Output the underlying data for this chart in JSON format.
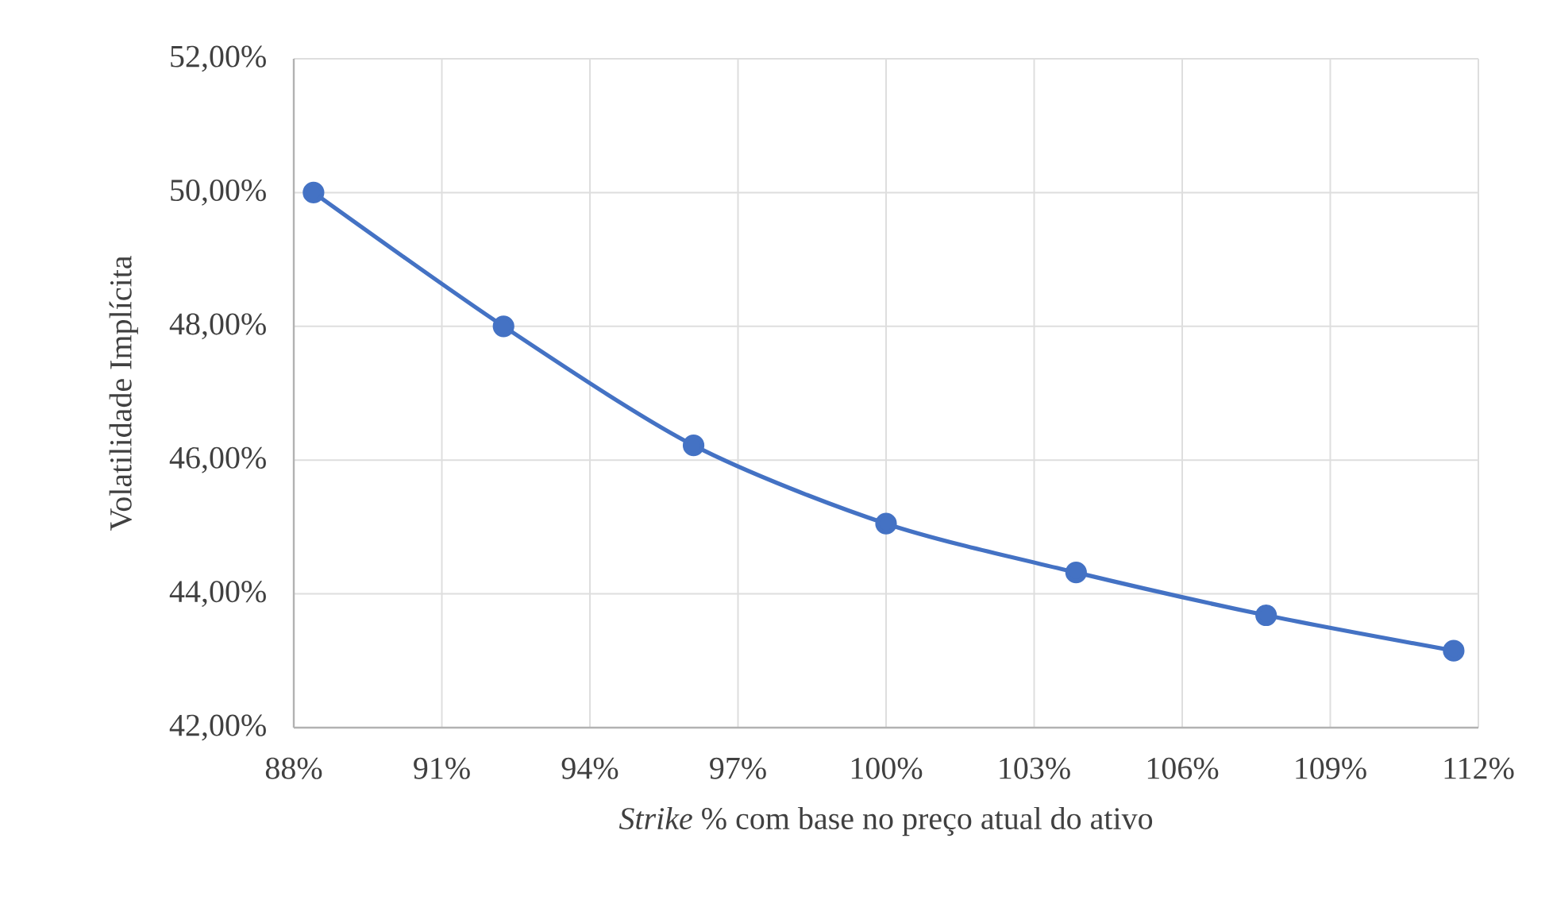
{
  "chart_data": {
    "type": "line",
    "xlabel": "*Strike* % com base no preço atual do ativo",
    "ylabel": "Volatilidade Implícita",
    "x": [
      88.4,
      92.25,
      96.1,
      100,
      103.85,
      107.7,
      111.5
    ],
    "series": [
      {
        "color": "#4472c4",
        "values": [
          50.0,
          48.0,
          46.22,
          45.05,
          44.32,
          43.68,
          43.15
        ]
      }
    ],
    "xlim": [
      88,
      112
    ],
    "xticks": [
      {
        "value": 88,
        "label": "88%"
      },
      {
        "value": 91,
        "label": "91%"
      },
      {
        "value": 94,
        "label": "94%"
      },
      {
        "value": 97,
        "label": "97%"
      },
      {
        "value": 100,
        "label": "100%"
      },
      {
        "value": 103,
        "label": "103%"
      },
      {
        "value": 106,
        "label": "106%"
      },
      {
        "value": 109,
        "label": "109%"
      },
      {
        "value": 112,
        "label": "112%"
      }
    ],
    "ylim": [
      42,
      52
    ],
    "yticks": [
      {
        "value": 42,
        "label": "42,00%"
      },
      {
        "value": 44,
        "label": "44,00%"
      },
      {
        "value": 46,
        "label": "46,00%"
      },
      {
        "value": 48,
        "label": "48,00%"
      },
      {
        "value": 50,
        "label": "50,00%"
      },
      {
        "value": 52,
        "label": "52,00%"
      }
    ],
    "grid": true,
    "marker": "circle",
    "line_style": "solid"
  }
}
